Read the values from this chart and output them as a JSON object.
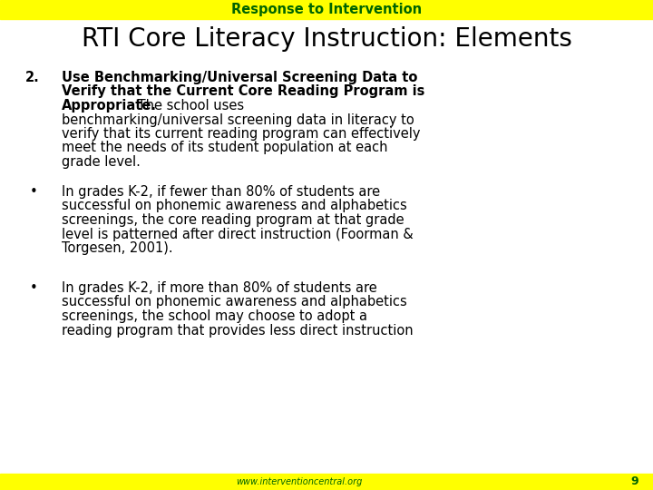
{
  "bg_color": "#ffffff",
  "header_bg": "#ffff00",
  "header_text": "Response to Intervention",
  "header_text_color": "#006400",
  "footer_bg": "#ffff00",
  "footer_text": "www.interventioncentral.org",
  "footer_text_color": "#006400",
  "page_number": "9",
  "title": "RTI Core Literacy Instruction: Elements",
  "title_color": "#000000",
  "text_color": "#000000",
  "bold_line1": "Use Benchmarking/Universal Screening Data to",
  "bold_line2": "Verify that the Current Core Reading Program is",
  "bold_word": "Appropriate.",
  "reg_line3": " The school uses",
  "reg_line4": "benchmarking/universal screening data in literacy to",
  "reg_line5": "verify that its current reading program can effectively",
  "reg_line6": "meet the needs of its student population at each",
  "reg_line7": "grade level.",
  "b1_l1": "In grades K-2, if fewer than 80% of students are",
  "b1_l2": "successful on phonemic awareness and alphabetics",
  "b1_l3": "screenings, the core reading program at that grade",
  "b1_l4": "level is patterned after direct instruction (Foorman &",
  "b1_l5": "Torgesen, 2001).",
  "b2_l1": "In grades K-2, if more than 80% of students are",
  "b2_l2": "successful on phonemic awareness and alphabetics",
  "b2_l3": "screenings, the school may choose to adopt a",
  "b2_l4": "reading program that provides less direct instruction"
}
